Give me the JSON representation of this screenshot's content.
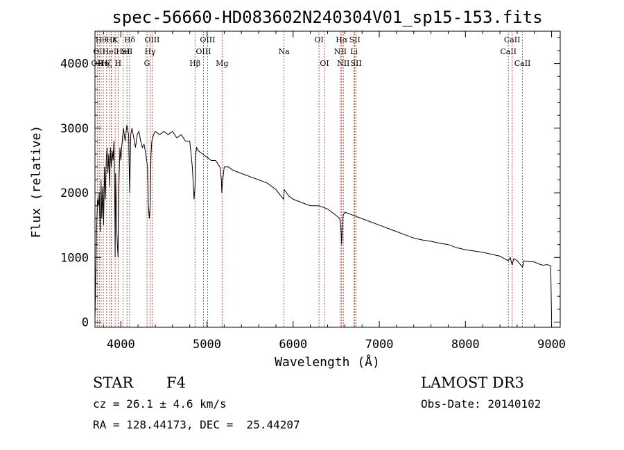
{
  "chart_data": {
    "type": "line",
    "title": "spec-56660-HD083602N240304V01_sp15-153.fits",
    "xlabel": "Wavelength (Å)",
    "ylabel": "Flux (relative)",
    "xlim": [
      3700,
      9100
    ],
    "ylim": [
      -80,
      4500
    ],
    "xticks": [
      {
        "v": 4000,
        "label": "4000"
      },
      {
        "v": 5000,
        "label": "5000"
      },
      {
        "v": 6000,
        "label": "6000"
      },
      {
        "v": 7000,
        "label": "7000"
      },
      {
        "v": 8000,
        "label": "8000"
      },
      {
        "v": 9000,
        "label": "9000"
      }
    ],
    "yticks": [
      {
        "v": 0,
        "label": "0"
      },
      {
        "v": 1000,
        "label": "1000"
      },
      {
        "v": 2000,
        "label": "2000"
      },
      {
        "v": 3000,
        "label": "3000"
      },
      {
        "v": 4000,
        "label": "4000"
      }
    ],
    "grid": false,
    "series": [
      {
        "name": "flux",
        "x": [
          3700,
          3710,
          3720,
          3730,
          3740,
          3750,
          3760,
          3770,
          3780,
          3790,
          3800,
          3810,
          3820,
          3830,
          3840,
          3850,
          3860,
          3870,
          3880,
          3890,
          3900,
          3910,
          3920,
          3930,
          3934,
          3940,
          3950,
          3960,
          3968,
          3975,
          3990,
          4000,
          4010,
          4030,
          4050,
          4070,
          4090,
          4102,
          4115,
          4130,
          4150,
          4170,
          4190,
          4210,
          4230,
          4250,
          4270,
          4290,
          4310,
          4320,
          4330,
          4340,
          4350,
          4360,
          4380,
          4400,
          4450,
          4500,
          4550,
          4600,
          4650,
          4700,
          4750,
          4800,
          4830,
          4850,
          4861,
          4870,
          4880,
          4900,
          4950,
          5000,
          5050,
          5100,
          5150,
          5167,
          5172,
          5183,
          5200,
          5250,
          5300,
          5400,
          5500,
          5600,
          5700,
          5800,
          5890,
          5896,
          5950,
          6000,
          6100,
          6200,
          6300,
          6400,
          6500,
          6540,
          6555,
          6563,
          6570,
          6580,
          6600,
          6700,
          6800,
          6900,
          7000,
          7100,
          7200,
          7300,
          7400,
          7500,
          7600,
          7700,
          7800,
          7900,
          8000,
          8100,
          8200,
          8300,
          8400,
          8480,
          8498,
          8520,
          8542,
          8560,
          8600,
          8662,
          8680,
          8700,
          8800,
          8850,
          8900,
          8950,
          8990,
          9000
        ],
        "y": [
          50,
          800,
          1500,
          1900,
          1800,
          2000,
          1400,
          2200,
          1600,
          2100,
          1500,
          2400,
          1900,
          2500,
          2700,
          2300,
          2600,
          2100,
          2700,
          2400,
          2650,
          2500,
          2800,
          1800,
          1000,
          2300,
          1500,
          1200,
          1000,
          2000,
          2700,
          2500,
          2700,
          3000,
          2800,
          3050,
          2900,
          2000,
          2900,
          3000,
          2850,
          2700,
          2900,
          2950,
          2800,
          2700,
          2750,
          2600,
          2400,
          1800,
          1600,
          1800,
          2600,
          2800,
          2900,
          2950,
          2900,
          2950,
          2900,
          2950,
          2850,
          2900,
          2800,
          2800,
          2400,
          1900,
          2100,
          2600,
          2700,
          2650,
          2600,
          2550,
          2500,
          2500,
          2400,
          2200,
          2000,
          2200,
          2400,
          2400,
          2350,
          2300,
          2250,
          2200,
          2150,
          2050,
          1900,
          2050,
          1950,
          1900,
          1850,
          1800,
          1800,
          1750,
          1650,
          1600,
          1450,
          1200,
          1400,
          1650,
          1700,
          1650,
          1600,
          1550,
          1500,
          1450,
          1400,
          1350,
          1300,
          1270,
          1250,
          1220,
          1200,
          1150,
          1120,
          1100,
          1080,
          1050,
          1020,
          960,
          950,
          1000,
          880,
          980,
          950,
          850,
          950,
          940,
          930,
          900,
          880,
          890,
          870,
          20
        ]
      }
    ],
    "lines": [
      {
        "wl": 3727,
        "row": 2,
        "label": "OII"
      },
      {
        "wl": 3750,
        "row": 1,
        "label": "OII"
      },
      {
        "wl": 3771,
        "row": 0,
        "label": "Hθ"
      },
      {
        "wl": 3797,
        "row": 2,
        "label": "Hη"
      },
      {
        "wl": 3835,
        "row": 2,
        "label": "Hζ"
      },
      {
        "wl": 3868,
        "row": 1,
        "label": "HeI"
      },
      {
        "wl": 3889,
        "row": 0,
        "label": "Hε"
      },
      {
        "wl": 3934,
        "row": 0,
        "label": "K"
      },
      {
        "wl": 3968,
        "row": 2,
        "label": "H"
      },
      {
        "wl": 4026,
        "row": 1,
        "label": "HeI"
      },
      {
        "wl": 4072,
        "row": 1,
        "label": "SII"
      },
      {
        "wl": 4102,
        "row": 0,
        "label": "Hδ"
      },
      {
        "wl": 4304,
        "row": 2,
        "label": "G"
      },
      {
        "wl": 4340,
        "row": 1,
        "label": "Hγ"
      },
      {
        "wl": 4363,
        "row": 0,
        "label": "OIII"
      },
      {
        "wl": 4861,
        "row": 2,
        "label": "Hβ"
      },
      {
        "wl": 4959,
        "row": 1,
        "label": "OIII"
      },
      {
        "wl": 5007,
        "row": 0,
        "label": "OIII"
      },
      {
        "wl": 5175,
        "row": 2,
        "label": "Mg"
      },
      {
        "wl": 5894,
        "row": 1,
        "label": "Na"
      },
      {
        "wl": 6300,
        "row": 0,
        "label": "OI"
      },
      {
        "wl": 6364,
        "row": 2,
        "label": "OI"
      },
      {
        "wl": 6548,
        "row": 1,
        "label": "NII"
      },
      {
        "wl": 6563,
        "row": 0,
        "label": "Hα"
      },
      {
        "wl": 6583,
        "row": 2,
        "label": "NII"
      },
      {
        "wl": 6707,
        "row": 1,
        "label": "Li"
      },
      {
        "wl": 6716,
        "row": 0,
        "label": "SII"
      },
      {
        "wl": 6731,
        "row": 2,
        "label": "SII"
      },
      {
        "wl": 8498,
        "row": 1,
        "label": "CaII"
      },
      {
        "wl": 8542,
        "row": 0,
        "label": "CaII"
      },
      {
        "wl": 8662,
        "row": 2,
        "label": "CaII"
      }
    ]
  },
  "info": {
    "object_class": "STAR",
    "subclass": "F4",
    "survey": "LAMOST DR3",
    "redshift": "cz = 26.1 ± 4.6 km/s",
    "obs_date": "Obs-Date: 20140102",
    "coords": "RA = 128.44173, DEC =  25.44207"
  }
}
